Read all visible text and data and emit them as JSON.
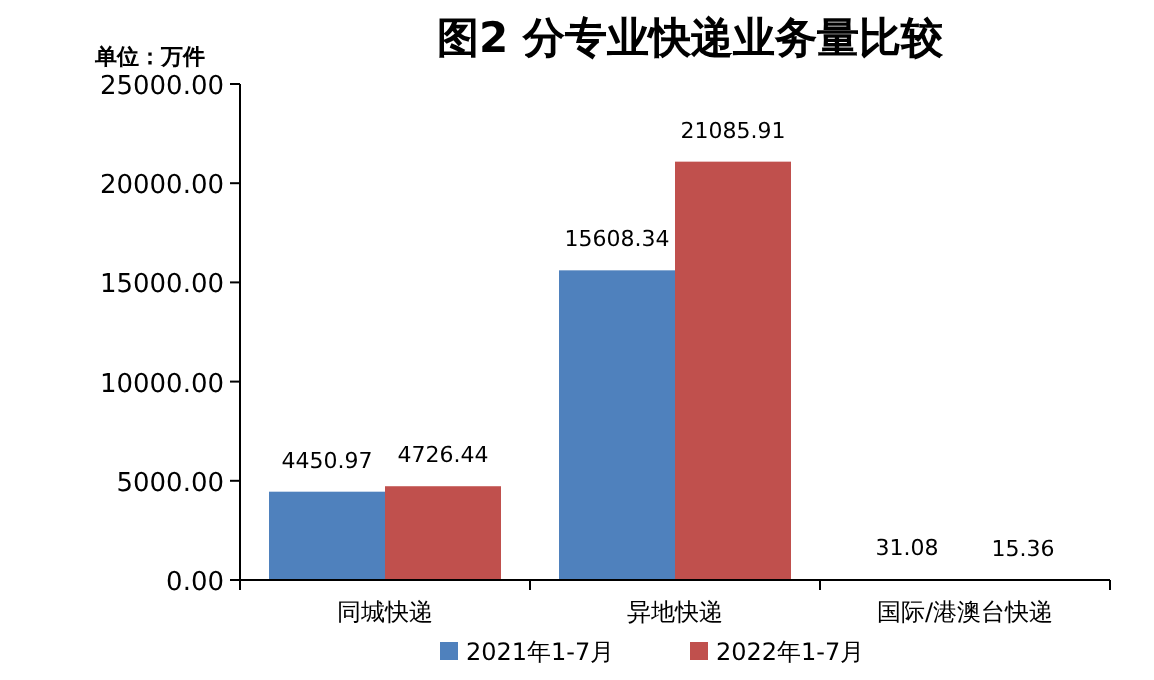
{
  "chart_data": {
    "type": "bar",
    "title": "图2  分专业快递业务量比较",
    "annotations": [
      "单位：万件"
    ],
    "categories": [
      "同城快递",
      "异地快递",
      "国际/港澳台快递"
    ],
    "series": [
      {
        "name": "2021年1-7月",
        "color": "#4f81bd",
        "values": [
          4450.97,
          15608.34,
          31.08
        ]
      },
      {
        "name": "2022年1-7月",
        "color": "#c0504d",
        "values": [
          4726.44,
          21085.91,
          15.36
        ]
      }
    ],
    "ylim": [
      0,
      25000
    ],
    "yticks": [
      {
        "value": 0,
        "label": "0.00"
      },
      {
        "value": 5000,
        "label": "5000.00"
      },
      {
        "value": 10000,
        "label": "10000.00"
      },
      {
        "value": 15000,
        "label": "15000.00"
      },
      {
        "value": 20000,
        "label": "20000.00"
      },
      {
        "value": 25000,
        "label": "25000.00"
      }
    ],
    "data_labels": true,
    "legend": "bottom",
    "grid": false
  }
}
